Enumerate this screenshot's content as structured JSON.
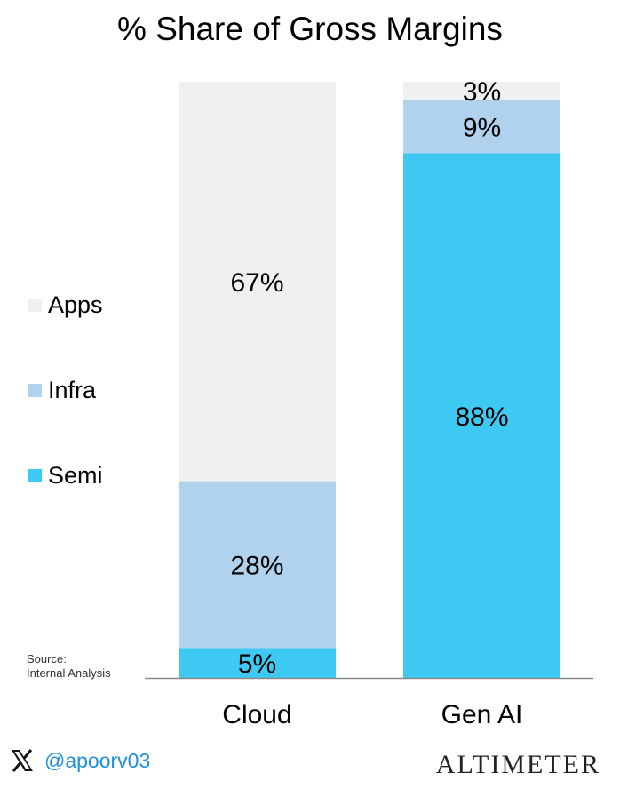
{
  "chart_data": {
    "type": "bar",
    "stacked": true,
    "title": "% Share of Gross Margins",
    "categories": [
      "Cloud",
      "Gen AI"
    ],
    "series": [
      {
        "name": "Semi",
        "values": [
          5,
          88
        ],
        "color": "#3ec9f3"
      },
      {
        "name": "Infra",
        "values": [
          28,
          9
        ],
        "color": "#b0d2ec"
      },
      {
        "name": "Apps",
        "values": [
          67,
          3
        ],
        "color": "#f0f0f0"
      }
    ],
    "data_labels": [
      [
        "5%",
        "88%"
      ],
      [
        "28%",
        "9%"
      ],
      [
        "67%",
        "3%"
      ]
    ],
    "legend_order": [
      "Apps",
      "Infra",
      "Semi"
    ],
    "legend_position": "left",
    "ylim": [
      0,
      100
    ],
    "grid": false
  },
  "source": {
    "line1": "Source:",
    "line2": "Internal Analysis"
  },
  "footer": {
    "handle": "@apoorv03",
    "icon": "x-logo-icon",
    "brand": "Altimeter"
  }
}
